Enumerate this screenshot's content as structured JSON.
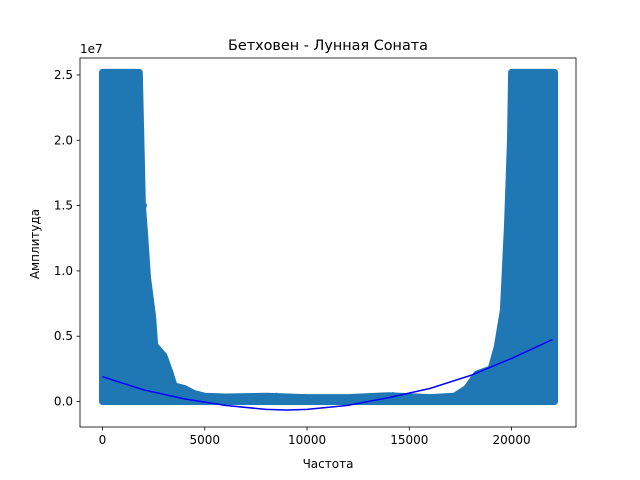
{
  "chart_data": {
    "type": "scatter",
    "title": "Бетховен - Лунная Соната",
    "xlabel": "Частота",
    "ylabel": "Амплитуда",
    "y_offset_label": "1e7",
    "xlim": [
      -1100,
      23150
    ],
    "ylim": [
      -1950000,
      26300000
    ],
    "x_ticks": [
      0,
      5000,
      10000,
      15000,
      20000
    ],
    "x_tick_labels": [
      "0",
      "5000",
      "10000",
      "15000",
      "20000"
    ],
    "y_ticks": [
      0,
      5000000,
      10000000,
      15000000,
      20000000,
      25000000
    ],
    "y_tick_labels": [
      "0.0",
      "0.5",
      "1.0",
      "1.5",
      "2.0",
      "2.5"
    ],
    "grid": false,
    "colors": {
      "scatter": "#1f77b4",
      "fit_line": "#0000ff"
    },
    "scatter_envelope": [
      {
        "x": 0,
        "y": 25200000
      },
      {
        "x": 1800,
        "y": 25200000
      },
      {
        "x": 1950,
        "y": 15000000
      },
      {
        "x": 2050,
        "y": 13000000
      },
      {
        "x": 2200,
        "y": 9500000
      },
      {
        "x": 2450,
        "y": 6500000
      },
      {
        "x": 2550,
        "y": 4300000
      },
      {
        "x": 3000,
        "y": 3500000
      },
      {
        "x": 3300,
        "y": 2200000
      },
      {
        "x": 3500,
        "y": 1200000
      },
      {
        "x": 4000,
        "y": 1000000
      },
      {
        "x": 4500,
        "y": 600000
      },
      {
        "x": 5000,
        "y": 400000
      },
      {
        "x": 6000,
        "y": 350000
      },
      {
        "x": 8000,
        "y": 400000
      },
      {
        "x": 10000,
        "y": 300000
      },
      {
        "x": 12000,
        "y": 300000
      },
      {
        "x": 14000,
        "y": 450000
      },
      {
        "x": 16000,
        "y": 300000
      },
      {
        "x": 17200,
        "y": 400000
      },
      {
        "x": 17800,
        "y": 1000000
      },
      {
        "x": 18300,
        "y": 2100000
      },
      {
        "x": 19000,
        "y": 2500000
      },
      {
        "x": 19300,
        "y": 4200000
      },
      {
        "x": 19600,
        "y": 7000000
      },
      {
        "x": 19800,
        "y": 13500000
      },
      {
        "x": 19950,
        "y": 20000000
      },
      {
        "x": 20000,
        "y": 25200000
      },
      {
        "x": 22100,
        "y": 25200000
      },
      {
        "x": 22100,
        "y": 0
      },
      {
        "x": 0,
        "y": 0
      }
    ],
    "outlier_points": [
      {
        "x": 2000,
        "y": 15000000
      },
      {
        "x": 1950,
        "y": 13000000
      },
      {
        "x": 8500,
        "y": 400000
      },
      {
        "x": 14200,
        "y": 450000
      },
      {
        "x": 18300,
        "y": 2000000
      },
      {
        "x": 19800,
        "y": 13300000
      },
      {
        "x": 19850,
        "y": 12300000
      }
    ],
    "fit_line": {
      "x": [
        0,
        2000,
        4000,
        6000,
        8000,
        9000,
        10000,
        12000,
        14000,
        16000,
        18000,
        20000,
        22000
      ],
      "y": [
        1900000,
        900000,
        200000,
        -300000,
        -600000,
        -650000,
        -600000,
        -300000,
        300000,
        1000000,
        2000000,
        3300000,
        4750000
      ]
    }
  }
}
